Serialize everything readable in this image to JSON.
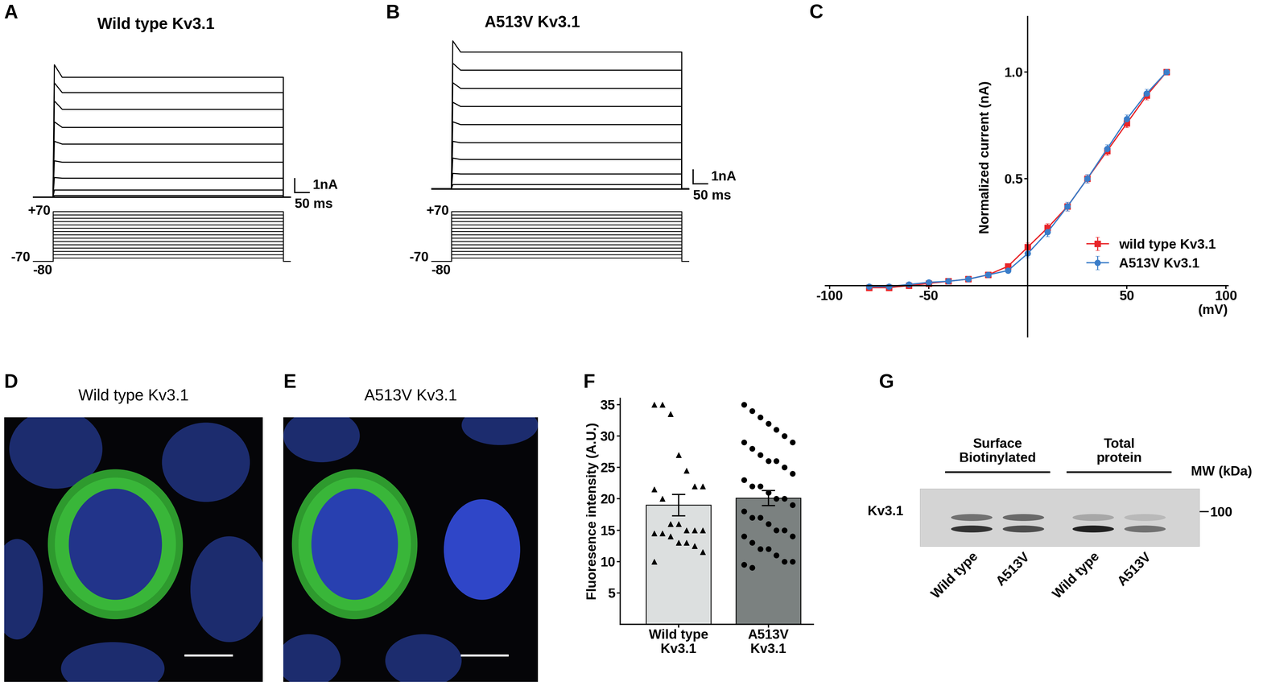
{
  "chart_data": [
    {
      "panel": "A",
      "type": "traces",
      "title": "Wild type Kv3.1",
      "step_ms": [
        0,
        800
      ],
      "xlim": [
        -70,
        900
      ],
      "ylim": [
        -0.6,
        10.2
      ],
      "steps_mV": [
        -70,
        -60,
        -50,
        -40,
        -30,
        -20,
        -10,
        0,
        10,
        20,
        30,
        40,
        50,
        60,
        70
      ],
      "steady_nA": [
        0,
        0,
        0,
        0,
        0,
        0,
        0.1,
        0.5,
        1.35,
        2.5,
        3.8,
        5.0,
        6.3,
        7.5,
        8.6
      ],
      "peak_nA": [
        0,
        0,
        0,
        0,
        0,
        0,
        0.1,
        0.5,
        1.4,
        2.6,
        4.0,
        5.4,
        6.9,
        8.2,
        9.5
      ],
      "scale_bars": {
        "current": {
          "value": 1,
          "label": "1nA"
        },
        "time": {
          "value": 50,
          "label": "50 ms"
        }
      },
      "protocol": {
        "holding_mV": -80,
        "ylim": [
          -90,
          76
        ],
        "labels": [
          {
            "value": 70,
            "label": "+70"
          },
          -70,
          -80
        ]
      }
    },
    {
      "panel": "B",
      "type": "traces",
      "title": "A513V Kv3.1",
      "step_ms": [
        0,
        800
      ],
      "xlim": [
        -70,
        900
      ],
      "ylim": [
        -0.6,
        11
      ],
      "steps_mV": [
        -70,
        -60,
        -50,
        -40,
        -30,
        -20,
        -10,
        0,
        10,
        20,
        30,
        40,
        50,
        60,
        70
      ],
      "steady_nA": [
        0,
        0,
        0,
        0,
        0,
        0,
        0.3,
        1.06,
        2.1,
        3.3,
        4.6,
        5.9,
        7.2,
        8.5,
        9.8
      ],
      "peak_nA": [
        0,
        0,
        0,
        0,
        0,
        0,
        0.3,
        1.1,
        2.2,
        3.4,
        4.8,
        6.2,
        7.6,
        9.0,
        10.6
      ],
      "scale_bars": {
        "current": {
          "value": 1,
          "label": "1nA"
        },
        "time": {
          "value": 50,
          "label": "50 ms"
        }
      },
      "protocol": {
        "holding_mV": -80,
        "ylim": [
          -90,
          76
        ],
        "labels": [
          {
            "value": 70,
            "label": "+70"
          },
          -70,
          -80
        ]
      }
    },
    {
      "panel": "C",
      "type": "line",
      "x": [
        -80,
        -70,
        -60,
        -50,
        -40,
        -30,
        -20,
        -10,
        0,
        10,
        20,
        30,
        40,
        50,
        60,
        70
      ],
      "series": [
        {
          "name": "wild type Kv3.1",
          "color": "#e8262a",
          "marker": "square",
          "values": [
            -0.01,
            -0.01,
            0.0,
            0.01,
            0.02,
            0.03,
            0.05,
            0.09,
            0.18,
            0.27,
            0.37,
            0.5,
            0.63,
            0.76,
            0.89,
            1.0
          ],
          "errors": [
            0.005,
            0.005,
            0.005,
            0.005,
            0.005,
            0.01,
            0.01,
            0.01,
            0.02,
            0.02,
            0.02,
            0.02,
            0.02,
            0.02,
            0.02,
            0.01
          ]
        },
        {
          "name": "A513V Kv3.1",
          "color": "#3a7dc9",
          "marker": "circle",
          "values": [
            -0.005,
            -0.005,
            0.005,
            0.015,
            0.02,
            0.03,
            0.05,
            0.07,
            0.15,
            0.25,
            0.37,
            0.5,
            0.64,
            0.78,
            0.9,
            1.0
          ],
          "errors": [
            0.005,
            0.005,
            0.005,
            0.005,
            0.005,
            0.01,
            0.01,
            0.01,
            0.02,
            0.02,
            0.02,
            0.02,
            0.02,
            0.02,
            0.02,
            0.01
          ]
        }
      ],
      "xlim": [
        -102,
        101
      ],
      "ylim": [
        -0.24,
        1.26
      ],
      "xticks": [
        -100,
        -50,
        50,
        100
      ],
      "yticks": [
        0.5,
        {
          "value": 1,
          "label": "1.0"
        }
      ],
      "xlabel": "(mV)",
      "ylabel": "Normalized current (nA)",
      "legend": "lower right"
    },
    {
      "panel": "D",
      "type": "image",
      "title": "Wild type Kv3.1"
    },
    {
      "panel": "E",
      "type": "image",
      "title": "A513V Kv3.1"
    },
    {
      "panel": "F",
      "type": "bar",
      "categories": [
        "Wild type\nKv3.1",
        "A513V\nKv3.1"
      ],
      "values": [
        19.0,
        20.1
      ],
      "errors": [
        1.7,
        1.2
      ],
      "colors": [
        "#dcdfdf",
        "#7b8180"
      ],
      "points": [
        {
          "marker": "triangle",
          "values": [
            35,
            35,
            33.5,
            27,
            24.5,
            22,
            22,
            21.5,
            20,
            16,
            16,
            15,
            15,
            15,
            14.5,
            14.5,
            14,
            13,
            13,
            12.5,
            11.5,
            10
          ]
        },
        {
          "marker": "circle",
          "values": [
            35,
            34,
            33,
            32,
            31,
            30,
            29,
            29,
            28,
            27,
            26,
            26,
            25,
            24,
            23,
            22,
            22,
            21,
            20,
            20,
            19,
            18,
            17,
            17,
            16,
            15,
            15,
            14,
            14,
            13,
            12,
            12,
            11,
            10,
            10,
            9.5,
            9
          ]
        }
      ],
      "ylim": [
        0,
        36
      ],
      "yticks": [
        5,
        10,
        15,
        20,
        25,
        30,
        35
      ],
      "ylabel": "Fluoresence intensity (A.U.)"
    },
    {
      "panel": "G",
      "type": "blot",
      "lanes": [
        "Wild type",
        "A513V",
        "Wild type",
        "A513V"
      ],
      "groups": [
        {
          "label": "Surface\nBiotinylated",
          "lanes": [
            0,
            1
          ]
        },
        {
          "label": "Total\nprotein",
          "lanes": [
            2,
            3
          ]
        }
      ],
      "row_label": "Kv3.1",
      "ylabel": "MW (kDa)",
      "ylim": [
        82,
        112
      ],
      "yticks": [
        100
      ],
      "bands": [
        {
          "lane": 0,
          "kDa": 97,
          "intensity": 0.55
        },
        {
          "lane": 0,
          "kDa": 91,
          "intensity": 0.9
        },
        {
          "lane": 1,
          "kDa": 97,
          "intensity": 0.6
        },
        {
          "lane": 1,
          "kDa": 91,
          "intensity": 0.75
        },
        {
          "lane": 2,
          "kDa": 97,
          "intensity": 0.25
        },
        {
          "lane": 2,
          "kDa": 91,
          "intensity": 1.0
        },
        {
          "lane": 3,
          "kDa": 97,
          "intensity": 0.15
        },
        {
          "lane": 3,
          "kDa": 91,
          "intensity": 0.55
        }
      ]
    }
  ]
}
